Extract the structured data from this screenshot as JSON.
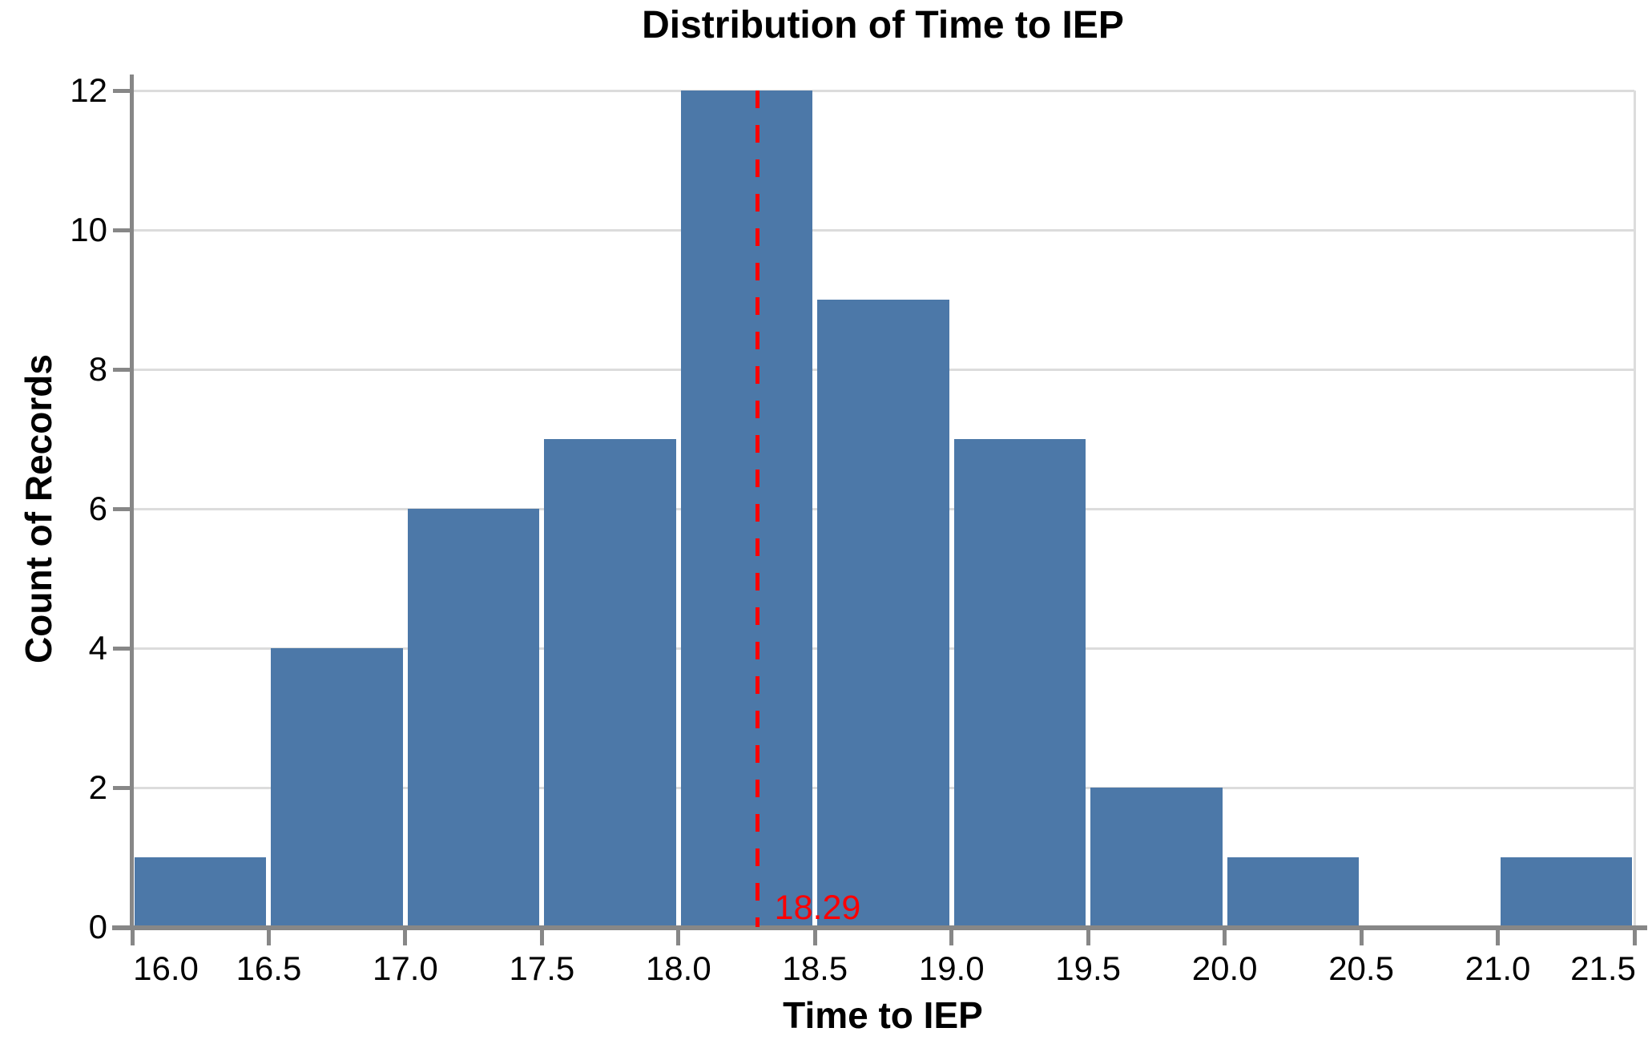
{
  "chart_data": {
    "type": "bar",
    "subtype": "histogram",
    "title": "Distribution of Time to IEP",
    "xlabel": "Time to IEP",
    "ylabel": "Count of Records",
    "bin_width": 0.5,
    "bin_starts": [
      16.0,
      16.5,
      17.0,
      17.5,
      18.0,
      18.5,
      19.0,
      19.5,
      20.0,
      20.5,
      21.0
    ],
    "values": [
      1,
      4,
      6,
      7,
      12,
      9,
      7,
      2,
      1,
      0,
      1
    ],
    "x_ticks": [
      16.0,
      16.5,
      17.0,
      17.5,
      18.0,
      18.5,
      19.0,
      19.5,
      20.0,
      20.5,
      21.0,
      21.5
    ],
    "x_tick_labels": [
      "16.0",
      "16.5",
      "17.0",
      "17.5",
      "18.0",
      "18.5",
      "19.0",
      "19.5",
      "20.0",
      "20.5",
      "21.0",
      "21.5"
    ],
    "y_ticks": [
      0,
      2,
      4,
      6,
      8,
      10,
      12
    ],
    "y_tick_labels": [
      "0",
      "2",
      "4",
      "6",
      "8",
      "10",
      "12"
    ],
    "xlim": [
      16.0,
      21.5
    ],
    "ylim": [
      0,
      12
    ],
    "grid": true,
    "legend": false,
    "annotation": {
      "value": 18.29,
      "label": "18.29",
      "style": "vertical-dashed-line"
    },
    "colors": {
      "bar": "#4c78a8",
      "axis": "#878787",
      "gridline": "#dcdcdc",
      "annotation": "#ff0000",
      "text": "#000000"
    }
  }
}
